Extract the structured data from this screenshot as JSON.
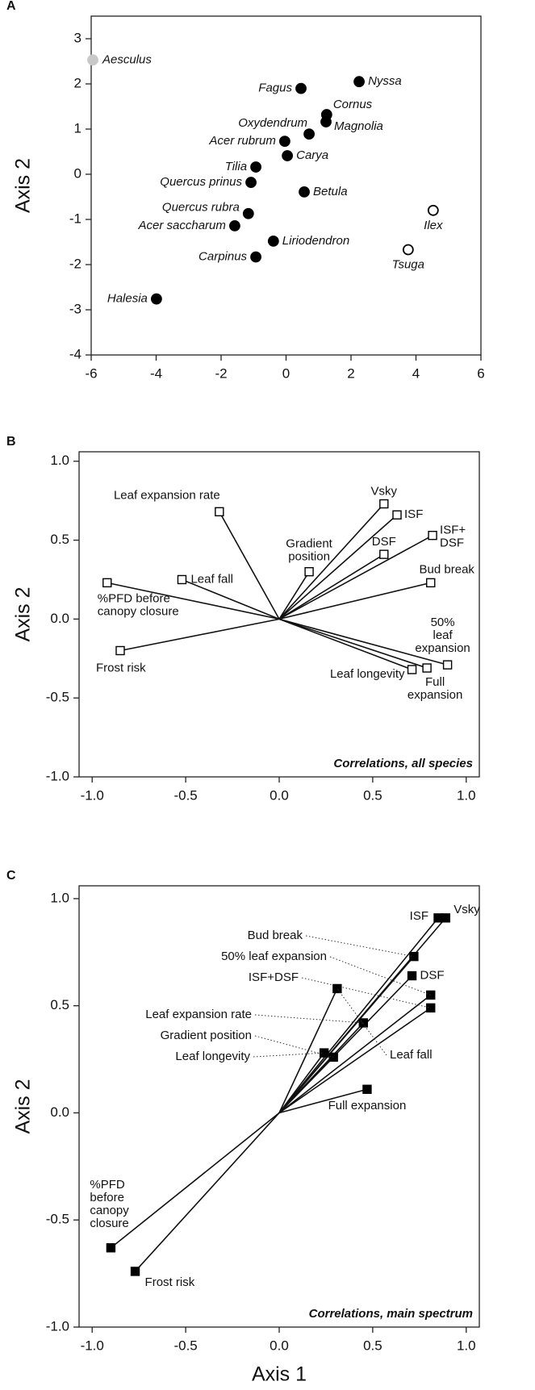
{
  "chart_data": [
    {
      "type": "scatter",
      "panel": "A",
      "y_label": "Axis 2",
      "labels": [
        "Aesculus",
        "Fagus",
        "Nyssa",
        "Cornus",
        "Magnolia",
        "Oxydendrum",
        "Acer rubrum",
        "Carya",
        "Tilia",
        "Quercus prinus",
        "Betula",
        "Quercus rubra",
        "Acer saccharum",
        "Liriodendron",
        "Carpinus",
        "Halesia",
        "Ilex",
        "Tsuga"
      ],
      "x": [
        -5.95,
        0.46,
        2.25,
        1.25,
        1.23,
        0.71,
        -0.04,
        0.04,
        -0.93,
        -1.08,
        0.56,
        -1.16,
        -1.58,
        -0.39,
        -0.93,
        -3.99,
        4.53,
        3.76
      ],
      "y": [
        2.53,
        1.9,
        2.05,
        1.32,
        1.16,
        0.89,
        0.73,
        0.41,
        0.16,
        -0.18,
        -0.39,
        -0.87,
        -1.14,
        -1.48,
        -1.83,
        -2.76,
        -0.8,
        -1.67
      ],
      "marker_fill": [
        "#c8c8c8",
        "#000000",
        "#000000",
        "#000000",
        "#000000",
        "#000000",
        "#000000",
        "#000000",
        "#000000",
        "#000000",
        "#000000",
        "#000000",
        "#000000",
        "#000000",
        "#000000",
        "#000000",
        "#ffffff",
        "#ffffff"
      ],
      "xlim": [
        -6,
        6
      ],
      "ylim": [
        -4,
        3.5
      ],
      "xticks": [
        -6,
        -4,
        -2,
        0,
        2,
        4,
        6
      ],
      "yticks": [
        -4,
        -3,
        -2,
        -1,
        0,
        1,
        2,
        3
      ]
    },
    {
      "type": "vector",
      "panel": "B",
      "y_label": "Axis 2",
      "annotation": "Correlations, all species",
      "labels": [
        "Leaf expansion rate",
        "Leaf fall",
        [
          "%PFD before",
          "canopy closure"
        ],
        "Frost risk",
        [
          "Gradient",
          "position"
        ],
        "Vsky",
        "ISF",
        "DSF",
        [
          "ISF+",
          "DSF"
        ],
        "Bud break",
        [
          "50%",
          "leaf",
          "expansion"
        ],
        [
          "Full",
          "expansion"
        ],
        "Leaf longevity"
      ],
      "x": [
        -0.32,
        -0.52,
        -0.92,
        -0.85,
        0.16,
        0.56,
        0.63,
        0.56,
        0.82,
        0.81,
        0.9,
        0.79,
        0.71
      ],
      "y": [
        0.68,
        0.25,
        0.23,
        -0.2,
        0.3,
        0.73,
        0.66,
        0.41,
        0.53,
        0.23,
        -0.29,
        -0.31,
        -0.32
      ],
      "marker_fill": "#ffffff",
      "xlim": [
        -1.07,
        1.07
      ],
      "ylim": [
        -1,
        1.06
      ],
      "xticks": [
        {
          "value": -1,
          "label": "-1.0"
        },
        -0.5,
        {
          "value": 0,
          "label": "0.0"
        },
        0.5,
        {
          "value": 1,
          "label": "1.0"
        }
      ],
      "yticks": [
        {
          "value": -1,
          "label": "-1.0"
        },
        -0.5,
        {
          "value": 0,
          "label": "0.0"
        },
        0.5,
        {
          "value": 1,
          "label": "1.0"
        }
      ]
    },
    {
      "type": "vector",
      "panel": "C",
      "y_label": "Axis 2",
      "x_label": "Axis 1",
      "annotation": "Correlations, main spectrum",
      "labels": [
        "Vsky",
        "ISF",
        "Bud break",
        "DSF",
        "50% leaf expansion",
        "ISF+DSF",
        "Leaf expansion rate",
        "Gradient position",
        "Leaf longevity",
        "Leaf fall",
        "Full expansion",
        [
          "%PFD",
          "before",
          "canopy",
          "closure"
        ],
        "Frost risk"
      ],
      "x": [
        0.89,
        0.85,
        0.72,
        0.71,
        0.81,
        0.81,
        0.45,
        0.29,
        0.24,
        0.31,
        0.47,
        -0.9,
        -0.77
      ],
      "y": [
        0.91,
        0.91,
        0.73,
        0.64,
        0.55,
        0.49,
        0.42,
        0.26,
        0.28,
        0.58,
        0.11,
        -0.63,
        -0.74
      ],
      "marker_fill": "#000000",
      "xlim": [
        -1.07,
        1.07
      ],
      "ylim": [
        -1,
        1.06
      ],
      "xticks": [
        {
          "value": -1,
          "label": "-1.0"
        },
        -0.5,
        {
          "value": 0,
          "label": "0.0"
        },
        0.5,
        {
          "value": 1,
          "label": "1.0"
        }
      ],
      "yticks": [
        {
          "value": -1,
          "label": "-1.0"
        },
        -0.5,
        {
          "value": 0,
          "label": "0.0"
        },
        0.5,
        {
          "value": 1,
          "label": "1.0"
        }
      ]
    }
  ]
}
